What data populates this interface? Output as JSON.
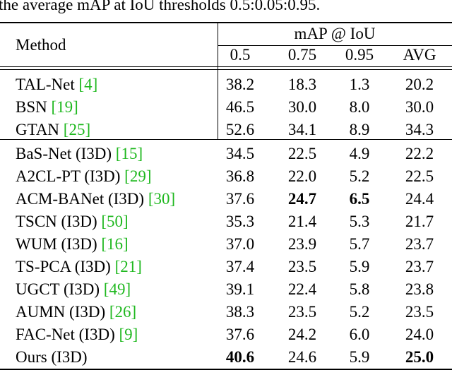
{
  "caption": "the average mAP at IoU thresholds 0.5:0.05:0.95.",
  "table": {
    "header": {
      "method": "Method",
      "group": "mAP @ IoU",
      "columns": [
        "0.5",
        "0.75",
        "0.95",
        "AVG"
      ]
    },
    "groups": [
      [
        {
          "method": "TAL-Net",
          "cite": "[4]",
          "values": [
            "38.2",
            "18.3",
            "1.3",
            "20.2"
          ],
          "bold": []
        },
        {
          "method": "BSN",
          "cite": "[19]",
          "values": [
            "46.5",
            "30.0",
            "8.0",
            "30.0"
          ],
          "bold": []
        },
        {
          "method": "GTAN",
          "cite": "[25]",
          "values": [
            "52.6",
            "34.1",
            "8.9",
            "34.3"
          ],
          "bold": []
        }
      ],
      [
        {
          "method": "BaS-Net (I3D)",
          "cite": "[15]",
          "values": [
            "34.5",
            "22.5",
            "4.9",
            "22.2"
          ],
          "bold": []
        },
        {
          "method": "A2CL-PT (I3D)",
          "cite": "[29]",
          "values": [
            "36.8",
            "22.0",
            "5.2",
            "22.5"
          ],
          "bold": []
        },
        {
          "method": "ACM-BANet (I3D)",
          "cite": "[30]",
          "values": [
            "37.6",
            "24.7",
            "6.5",
            "24.4"
          ],
          "bold": [
            1,
            2
          ]
        },
        {
          "method": "TSCN (I3D)",
          "cite": "[50]",
          "values": [
            "35.3",
            "21.4",
            "5.3",
            "21.7"
          ],
          "bold": []
        },
        {
          "method": "WUM (I3D)",
          "cite": "[16]",
          "values": [
            "37.0",
            "23.9",
            "5.7",
            "23.7"
          ],
          "bold": []
        },
        {
          "method": "TS-PCA (I3D)",
          "cite": "[21]",
          "values": [
            "37.4",
            "23.5",
            "5.9",
            "23.7"
          ],
          "bold": []
        },
        {
          "method": "UGCT (I3D)",
          "cite": "[49]",
          "values": [
            "39.1",
            "22.4",
            "5.8",
            "23.8"
          ],
          "bold": []
        },
        {
          "method": "AUMN (I3D)",
          "cite": "[26]",
          "values": [
            "38.3",
            "23.5",
            "5.2",
            "23.5"
          ],
          "bold": []
        },
        {
          "method": "FAC-Net (I3D)",
          "cite": "[9]",
          "values": [
            "37.6",
            "24.2",
            "6.0",
            "24.0"
          ],
          "bold": []
        },
        {
          "method": "Ours (I3D)",
          "cite": null,
          "values": [
            "40.6",
            "24.6",
            "5.9",
            "25.0"
          ],
          "bold": [
            0,
            3
          ]
        }
      ]
    ]
  }
}
